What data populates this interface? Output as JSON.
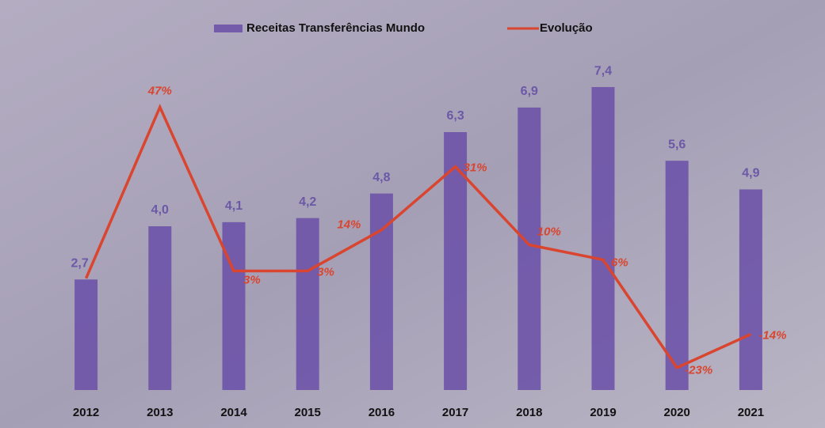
{
  "chart_data": {
    "type": "bar",
    "categories": [
      "2012",
      "2013",
      "2014",
      "2015",
      "2016",
      "2017",
      "2018",
      "2019",
      "2020",
      "2021"
    ],
    "series": [
      {
        "name": "Receitas Transferências Mundo",
        "type": "bar",
        "color": "#6a4fa8",
        "values": [
          2.7,
          4.0,
          4.1,
          4.2,
          4.8,
          6.3,
          6.9,
          7.4,
          5.6,
          4.9
        ],
        "value_labels": [
          "2,7",
          "4,0",
          "4,1",
          "4,2",
          "4,8",
          "6,3",
          "6,9",
          "7,4",
          "5,6",
          "4,9"
        ]
      },
      {
        "name": "Evolução",
        "type": "line",
        "axis": "y2",
        "color": "#d9452e",
        "values": [
          1,
          47,
          3,
          3,
          14,
          31,
          10,
          6,
          -23,
          -14
        ],
        "value_labels": [
          null,
          "47%",
          "3%",
          "3%",
          "14%",
          "31%",
          "10%",
          "6%",
          "-23%",
          "-14%"
        ]
      }
    ],
    "ylim": [
      0,
      8
    ],
    "y2lim": [
      -29,
      59
    ],
    "legend": "top"
  }
}
